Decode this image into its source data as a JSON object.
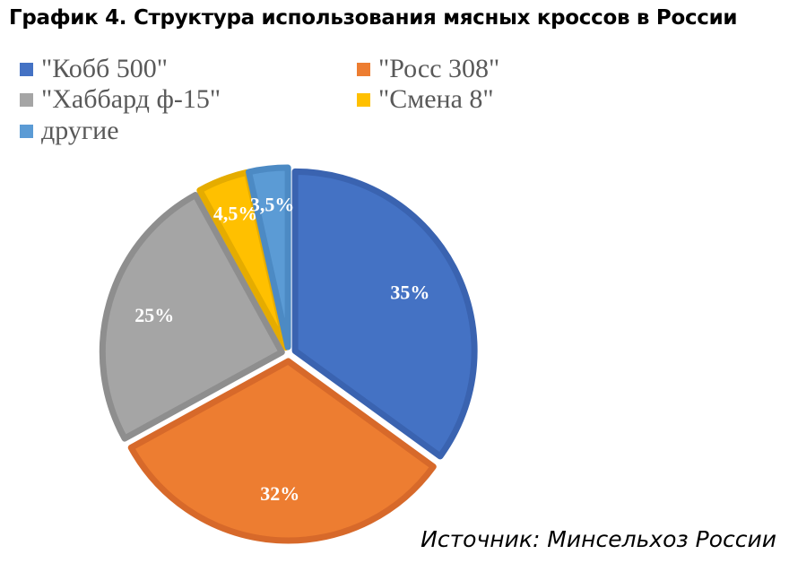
{
  "title": "График 4. Структура использования мясных кроссов в России",
  "source": "Источник: Минсельхоз России",
  "chart_data": {
    "type": "pie",
    "title": "График 4. Структура использования мясных кроссов в России",
    "legend_position": "top",
    "categories": [
      "\"Кобб 500\"",
      "\"Росс 308\"",
      "\"Хаббард ф-15\"",
      "\"Смена 8\"",
      "другие"
    ],
    "values": [
      35,
      32,
      25,
      4.5,
      3.5
    ],
    "data_labels": [
      "35%",
      "32%",
      "25%",
      "4,5%",
      "3,5%"
    ],
    "colors": [
      "#4472C4",
      "#ED7D31",
      "#A5A5A5",
      "#FFC000",
      "#5B9BD5"
    ],
    "border_colors": [
      "#3A63B0",
      "#D7692A",
      "#8E8E8E",
      "#E5AC00",
      "#4C8AC4"
    ],
    "label_color": "#FFFFFF",
    "unit": "%"
  }
}
